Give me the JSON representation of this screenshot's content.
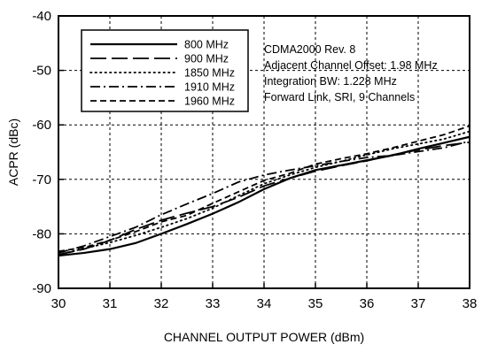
{
  "chart_data": {
    "type": "line",
    "title": "",
    "xlabel": "CHANNEL OUTPUT POWER (dBm)",
    "ylabel": "ACPR (dBc)",
    "xlim": [
      30,
      38
    ],
    "ylim": [
      -90,
      -40
    ],
    "x_ticks": [
      "30",
      "31",
      "32",
      "33",
      "34",
      "35",
      "36",
      "37",
      "38"
    ],
    "y_ticks": [
      "-40",
      "-50",
      "-60",
      "-70",
      "-80",
      "-90"
    ],
    "grid": true,
    "grid_style": "dashed",
    "legend_position": "top-left",
    "annotation": [
      "CDMA2000 Rev. 8",
      "Adjacent Channel Offset: 1.98 MHz",
      "Integration BW: 1.228 MHz",
      "Forward Link, SRI, 9 Channels"
    ],
    "series": [
      {
        "name": "800 MHz",
        "style": "solid",
        "x": [
          30,
          30.5,
          31,
          31.5,
          32,
          32.5,
          33,
          33.5,
          34,
          34.5,
          35,
          35.5,
          36,
          36.5,
          37,
          37.5,
          38
        ],
        "y": [
          -84,
          -83.5,
          -82.8,
          -81.7,
          -80,
          -78.2,
          -76.3,
          -74.2,
          -71.8,
          -69.8,
          -68.3,
          -67.4,
          -66.5,
          -65.6,
          -64.4,
          -63.3,
          -62.2
        ]
      },
      {
        "name": "900 MHz",
        "style": "longdash",
        "x": [
          30,
          30.5,
          31,
          31.5,
          32,
          32.5,
          33,
          33.5,
          34,
          34.5,
          35,
          35.5,
          36,
          36.5,
          37,
          37.5,
          38
        ],
        "y": [
          -83.8,
          -82.8,
          -81.2,
          -79.2,
          -77.5,
          -76.2,
          -75,
          -73.3,
          -71.2,
          -69.8,
          -68.5,
          -67.5,
          -66.6,
          -65.5,
          -64.6,
          -63.8,
          -63.2
        ]
      },
      {
        "name": "1850 MHz",
        "style": "dotted",
        "x": [
          30,
          30.5,
          31,
          31.5,
          32,
          32.5,
          33,
          33.5,
          34,
          34.5,
          35,
          35.5,
          36,
          36.5,
          37,
          37.5,
          38
        ],
        "y": [
          -83.8,
          -82.7,
          -81.6,
          -80.3,
          -78.8,
          -77.2,
          -75.3,
          -73,
          -70.8,
          -69.2,
          -67.8,
          -66.7,
          -65.5,
          -64.4,
          -63.5,
          -62.6,
          -61.2
        ]
      },
      {
        "name": "1910 MHz",
        "style": "dashdot",
        "x": [
          30,
          30.5,
          31,
          31.5,
          32,
          32.5,
          33,
          33.5,
          34,
          34.5,
          35,
          35.5,
          36,
          36.5,
          37,
          37.5,
          38
        ],
        "y": [
          -83.5,
          -82.2,
          -80.5,
          -78.8,
          -76.5,
          -74.5,
          -72.6,
          -70.5,
          -69.2,
          -68.3,
          -67.5,
          -66.7,
          -66,
          -65.6,
          -64.9,
          -64.2,
          -63
        ]
      },
      {
        "name": "1960 MHz",
        "style": "shortdash",
        "x": [
          30,
          30.5,
          31,
          31.5,
          32,
          32.5,
          33,
          33.5,
          34,
          34.5,
          35,
          35.5,
          36,
          36.5,
          37,
          37.5,
          38
        ],
        "y": [
          -83.2,
          -82.5,
          -81.2,
          -79.6,
          -77.8,
          -76.6,
          -74.4,
          -72.3,
          -70.2,
          -68.9,
          -67.2,
          -66.2,
          -65.3,
          -64.2,
          -63,
          -61.8,
          -60.2
        ]
      }
    ]
  }
}
